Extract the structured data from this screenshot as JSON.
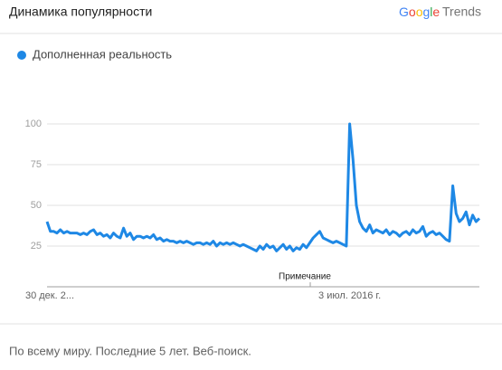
{
  "header": {
    "title": "Динамика популярности",
    "logo_google": "Google",
    "logo_trends": "Trends"
  },
  "chart_data": {
    "type": "line",
    "series": [
      {
        "name": "Дополненная реальность",
        "color": "#1e88e5",
        "values": [
          40,
          34,
          34,
          33,
          35,
          33,
          34,
          33,
          33,
          33,
          32,
          33,
          32,
          34,
          35,
          32,
          33,
          31,
          32,
          30,
          33,
          31,
          30,
          36,
          31,
          33,
          29,
          31,
          31,
          30,
          31,
          30,
          32,
          29,
          30,
          28,
          29,
          28,
          28,
          27,
          28,
          27,
          28,
          27,
          26,
          27,
          27,
          26,
          27,
          26,
          28,
          25,
          27,
          26,
          27,
          26,
          27,
          26,
          25,
          26,
          25,
          24,
          23,
          22,
          25,
          23,
          26,
          24,
          25,
          22,
          24,
          26,
          23,
          25,
          22,
          24,
          23,
          26,
          24,
          27,
          30,
          32,
          34,
          30,
          29,
          28,
          27,
          28,
          27,
          26,
          25,
          100,
          78,
          50,
          40,
          36,
          34,
          38,
          33,
          35,
          34,
          33,
          35,
          32,
          34,
          33,
          31,
          33,
          34,
          32,
          35,
          33,
          34,
          37,
          31,
          33,
          34,
          32,
          33,
          31,
          29,
          28,
          62,
          45,
          40,
          42,
          46,
          38,
          44,
          40,
          42
        ]
      }
    ],
    "categories": [
      "30 дек. 2...",
      null,
      null,
      null,
      null,
      null,
      null,
      null,
      null,
      null,
      null,
      null,
      null,
      null,
      null,
      null,
      null,
      null,
      null,
      null,
      null,
      null,
      null,
      null,
      null,
      null,
      null,
      null,
      null,
      null,
      null,
      null,
      null,
      null,
      null,
      null,
      null,
      null,
      null,
      null,
      null,
      null,
      null,
      null,
      null,
      null,
      null,
      null,
      null,
      null,
      null,
      null,
      null,
      null,
      null,
      null,
      null,
      null,
      null,
      null,
      null,
      null,
      null,
      null,
      null,
      null,
      null,
      null,
      null,
      null,
      null,
      null,
      null,
      null,
      null,
      null,
      null,
      null,
      null,
      null,
      null,
      null,
      null,
      null,
      null,
      null,
      null,
      null,
      null,
      null,
      null,
      "3 июл. 2016 г.",
      null,
      null,
      null,
      null,
      null,
      null,
      null,
      null,
      null,
      null,
      null,
      null,
      null,
      null,
      null,
      null,
      null,
      null,
      null,
      null,
      null,
      null,
      null,
      null,
      null,
      null,
      null,
      null,
      null,
      null,
      null,
      null,
      null,
      null,
      null,
      null,
      null,
      null,
      null
    ],
    "ylim": [
      0,
      100
    ],
    "yticks": [
      25,
      50,
      75,
      100
    ],
    "grid": true,
    "annotation": "Примечание"
  },
  "footer": "По всему миру. Последние 5 лет. Веб-поиск."
}
